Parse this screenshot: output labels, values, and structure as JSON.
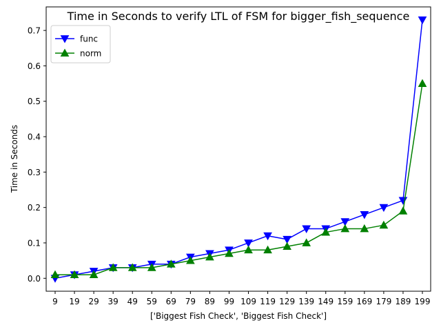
{
  "chart_data": {
    "type": "line",
    "title": "Time in Seconds to verify LTL of FSM for bigger_fish_sequence",
    "xlabel": "['Biggest Fish Check', 'Biggest Fish Check']",
    "ylabel": "Time in Seconds",
    "categories": [
      "9",
      "19",
      "29",
      "39",
      "49",
      "59",
      "69",
      "79",
      "89",
      "99",
      "109",
      "119",
      "129",
      "139",
      "149",
      "159",
      "169",
      "179",
      "189",
      "199"
    ],
    "ylim": [
      -0.0365,
      0.7665
    ],
    "yticks": [
      "0.0",
      "0.1",
      "0.2",
      "0.3",
      "0.4",
      "0.5",
      "0.6",
      "0.7"
    ],
    "grid": false,
    "legend_position": "upper-left",
    "series": [
      {
        "name": "func",
        "color": "#0000ff",
        "marker": "triangle-down",
        "values": [
          0.0,
          0.01,
          0.02,
          0.03,
          0.03,
          0.04,
          0.04,
          0.06,
          0.07,
          0.08,
          0.1,
          0.12,
          0.11,
          0.14,
          0.14,
          0.16,
          0.18,
          0.2,
          0.22,
          0.73
        ]
      },
      {
        "name": "norm",
        "color": "#008000",
        "marker": "triangle-up",
        "values": [
          0.01,
          0.01,
          0.01,
          0.03,
          0.03,
          0.03,
          0.04,
          0.05,
          0.06,
          0.07,
          0.08,
          0.08,
          0.09,
          0.1,
          0.13,
          0.14,
          0.14,
          0.15,
          0.19,
          0.55
        ]
      }
    ]
  }
}
